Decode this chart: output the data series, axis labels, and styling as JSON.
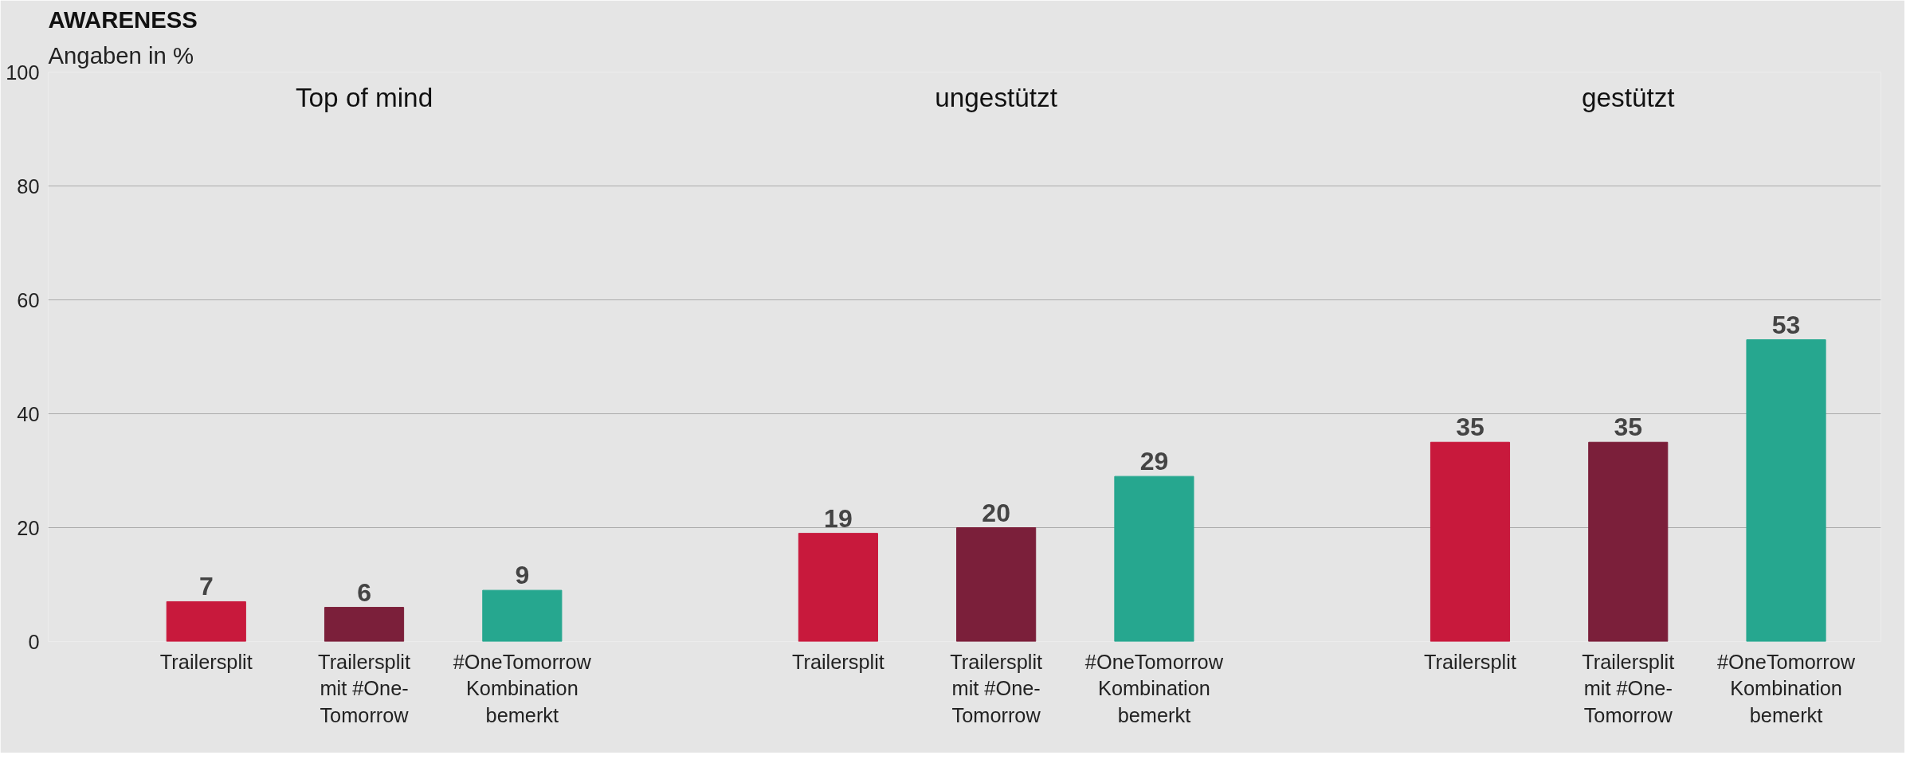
{
  "chart_data": {
    "type": "bar",
    "title": "AWARENESS",
    "subtitle": "Angaben in %",
    "categories": [
      "Trailersplit",
      "Trailersplit mit #One-Tomorrow",
      "#OneTomorrow Kombination bemerkt",
      null,
      "Trailersplit",
      "Trailersplit mit #One-Tomorrow",
      "#OneTomorrow Kombination bemerkt",
      null,
      "Trailersplit",
      "Trailersplit mit #One-Tomorrow",
      "#OneTomorrow Kombination bemerkt"
    ],
    "values": [
      7,
      6,
      9,
      null,
      19,
      20,
      29,
      null,
      35,
      35,
      53
    ],
    "colors": [
      "#c8193c",
      "#7b1f3a",
      "#26a78f",
      "#e5e5e5",
      "#c8193c",
      "#7b1f3a",
      "#26a78f",
      "#e5e5e5",
      "#c8193c",
      "#7b1f3a",
      "#26a78f"
    ],
    "annotations": [
      "Top of mind",
      "ungestützt",
      "gestützt"
    ],
    "ylim": [
      0,
      100
    ],
    "yticks": [
      0,
      20,
      40,
      60,
      80,
      100
    ],
    "grid": "y",
    "data_labels": true
  }
}
